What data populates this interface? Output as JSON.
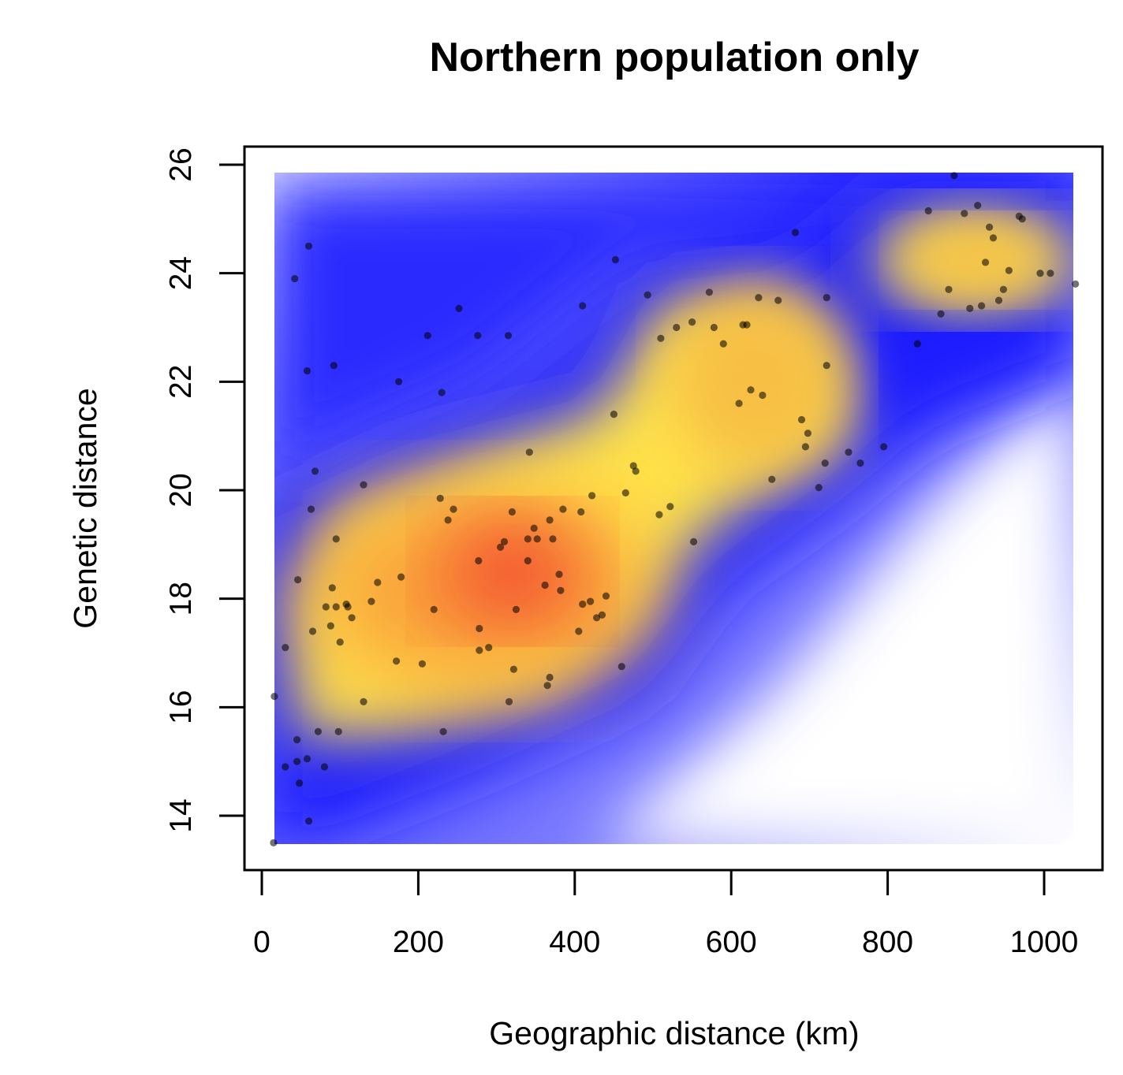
{
  "chart_data": {
    "type": "scatter",
    "title": "Northern population only",
    "xlabel": "Geographic distance (km)",
    "ylabel": "Genetic distance",
    "xlim": [
      0,
      1040
    ],
    "ylim": [
      13.5,
      25.85
    ],
    "xticks": [
      0,
      200,
      400,
      600,
      800,
      1000
    ],
    "yticks": [
      14,
      16,
      18,
      20,
      22,
      24,
      26
    ],
    "xtick_labels": [
      "0",
      "200",
      "400",
      "600",
      "800",
      "1000"
    ],
    "ytick_labels": [
      "14",
      "16",
      "18",
      "20",
      "22",
      "24",
      "26"
    ],
    "grid": false,
    "legend": "none",
    "background": "density (2D kernel density, blue-yellow-red)",
    "colors": {
      "density_low": "#0000ff",
      "density_mid": "#ffe050",
      "density_high": "#ff2020",
      "points": "#000000"
    },
    "points": {
      "x": [
        15,
        16,
        30,
        30,
        42,
        45,
        45,
        46,
        48,
        58,
        58,
        60,
        60,
        63,
        65,
        68,
        72,
        80,
        82,
        88,
        90,
        92,
        95,
        95,
        98,
        100,
        108,
        110,
        115,
        130,
        130,
        140,
        148,
        172,
        175,
        178,
        205,
        212,
        220,
        228,
        230,
        232,
        238,
        245,
        252,
        276,
        277,
        278,
        278,
        290,
        305,
        310,
        315,
        316,
        320,
        322,
        325,
        340,
        340,
        342,
        348,
        352,
        362,
        365,
        368,
        368,
        372,
        380,
        382,
        385,
        405,
        408,
        410,
        410,
        420,
        422,
        428,
        435,
        440,
        450,
        452,
        460,
        465,
        475,
        478,
        493,
        508,
        510,
        522,
        530,
        550,
        552,
        572,
        578,
        590,
        610,
        615,
        620,
        625,
        635,
        640,
        652,
        660,
        682,
        690,
        695,
        698,
        712,
        720,
        722,
        722,
        750,
        765,
        795,
        838,
        852,
        868,
        878,
        885,
        898,
        905,
        915,
        920,
        925,
        930,
        935,
        942,
        948,
        955,
        968,
        972,
        995,
        1008,
        1040
      ],
      "y": [
        13.5,
        16.2,
        14.9,
        17.1,
        23.9,
        15.4,
        15.0,
        18.35,
        14.6,
        22.2,
        15.05,
        13.9,
        24.5,
        19.65,
        17.4,
        20.35,
        15.55,
        14.9,
        17.85,
        17.5,
        18.2,
        22.3,
        17.85,
        19.1,
        15.55,
        17.2,
        17.9,
        17.85,
        17.65,
        16.1,
        20.1,
        17.95,
        18.3,
        16.85,
        22.0,
        18.4,
        16.8,
        22.85,
        17.8,
        19.85,
        21.8,
        15.55,
        19.45,
        19.65,
        23.35,
        22.85,
        18.7,
        17.05,
        17.45,
        17.1,
        18.95,
        19.05,
        22.85,
        16.1,
        19.6,
        16.7,
        17.8,
        18.7,
        19.1,
        20.7,
        19.3,
        19.1,
        18.25,
        16.4,
        19.45,
        16.55,
        19.1,
        18.45,
        18.15,
        19.65,
        17.4,
        19.6,
        17.9,
        23.4,
        17.95,
        19.9,
        17.65,
        17.7,
        18.05,
        21.4,
        24.25,
        16.75,
        19.95,
        20.45,
        20.35,
        23.6,
        19.55,
        22.8,
        19.7,
        23.0,
        23.1,
        19.05,
        23.65,
        23.0,
        22.7,
        21.6,
        23.05,
        23.05,
        21.85,
        23.55,
        21.75,
        20.2,
        23.5,
        24.75,
        21.3,
        20.8,
        21.05,
        20.05,
        20.5,
        22.3,
        23.55,
        20.7,
        20.5,
        20.8,
        22.7,
        25.15,
        23.25,
        23.7,
        25.8,
        25.1,
        23.35,
        25.25,
        23.4,
        24.2,
        24.85,
        24.65,
        23.5,
        23.7,
        24.05,
        25.05,
        25.0,
        24.0,
        24.0,
        23.8
      ]
    }
  }
}
